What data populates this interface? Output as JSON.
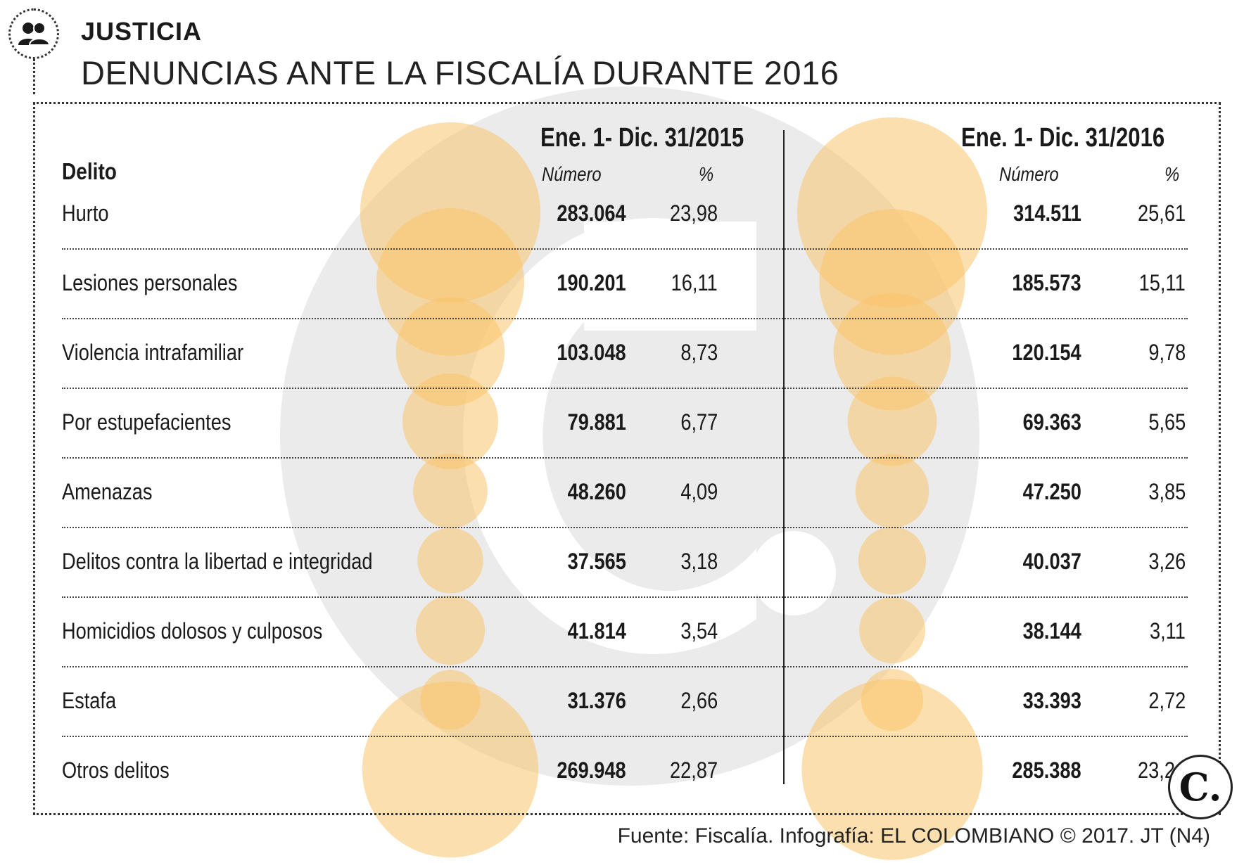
{
  "header": {
    "section": "JUSTICIA",
    "title": "DENUNCIAS ANTE LA FISCALÍA DURANTE 2016",
    "icon": "people-icon"
  },
  "table": {
    "category_header": "Delito",
    "periods": [
      {
        "label": "Ene. 1- Dic. 31/2015",
        "number_header": "Número",
        "percent_header": "%"
      },
      {
        "label": "Ene. 1- Dic. 31/2016",
        "number_header": "Número",
        "percent_header": "%"
      }
    ],
    "rows": [
      {
        "label": "Hurto",
        "n2015": "283.064",
        "p2015": "23,98",
        "n2016": "314.511",
        "p2016": "25,61"
      },
      {
        "label": "Lesiones personales",
        "n2015": "190.201",
        "p2015": "16,11",
        "n2016": "185.573",
        "p2016": "15,11"
      },
      {
        "label": "Violencia intrafamiliar",
        "n2015": "103.048",
        "p2015": "8,73",
        "n2016": "120.154",
        "p2016": "9,78"
      },
      {
        "label": "Por estupefacientes",
        "n2015": "79.881",
        "p2015": "6,77",
        "n2016": "69.363",
        "p2016": "5,65"
      },
      {
        "label": "Amenazas",
        "n2015": "48.260",
        "p2015": "4,09",
        "n2016": "47.250",
        "p2016": "3,85"
      },
      {
        "label": "Delitos contra la libertad e integridad",
        "n2015": "37.565",
        "p2015": "3,18",
        "n2016": "40.037",
        "p2016": "3,26"
      },
      {
        "label": "Homicidios dolosos y culposos",
        "n2015": "41.814",
        "p2015": "3,54",
        "n2016": "38.144",
        "p2016": "3,11"
      },
      {
        "label": "Estafa",
        "n2015": "31.376",
        "p2015": "2,66",
        "n2016": "33.393",
        "p2016": "2,72"
      },
      {
        "label": "Otros delitos",
        "n2015": "269.948",
        "p2015": "22,87",
        "n2016": "285.388",
        "p2016": "23,24"
      }
    ]
  },
  "chart_data": {
    "type": "bubble",
    "categories": [
      "Hurto",
      "Lesiones personales",
      "Violencia intrafamiliar",
      "Por estupefacientes",
      "Amenazas",
      "Delitos contra la libertad e integridad",
      "Homicidios dolosos y culposos",
      "Estafa",
      "Otros delitos"
    ],
    "series": [
      {
        "name": "Ene. 1- Dic. 31/2015",
        "values": [
          283064,
          190201,
          103048,
          79881,
          48260,
          37565,
          41814,
          31376,
          269948
        ],
        "percent": [
          23.98,
          16.11,
          8.73,
          6.77,
          4.09,
          3.18,
          3.54,
          2.66,
          22.87
        ]
      },
      {
        "name": "Ene. 1- Dic. 31/2016",
        "values": [
          314511,
          185573,
          120154,
          69363,
          47250,
          40037,
          38144,
          33393,
          285388
        ],
        "percent": [
          25.61,
          15.11,
          9.78,
          5.65,
          3.85,
          3.26,
          3.11,
          2.72,
          23.24
        ]
      }
    ],
    "colors": {
      "bubble": "#f9c56b",
      "bubble_dark": "#e8a347",
      "watermark": "#e9e9e9"
    }
  },
  "footer": {
    "source": "Fuente: Fiscalía. Infografía: EL COLOMBIANO © 2017. JT (N4)",
    "logo_letter": "C."
  }
}
